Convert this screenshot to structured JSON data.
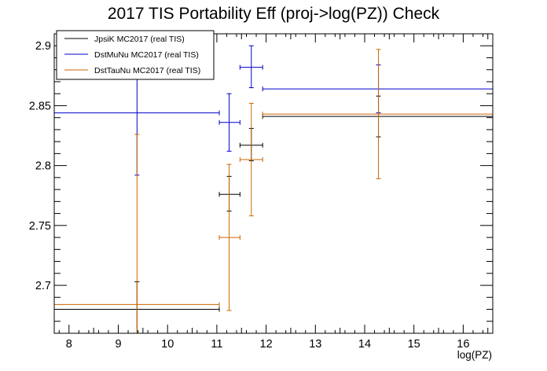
{
  "chart_data": {
    "type": "scatter",
    "title": "2017 TIS Portability Eff (proj->log(PZ)) Check",
    "xlabel": "log(PZ)",
    "ylabel": "",
    "xlim": [
      7.7,
      16.6
    ],
    "ylim": [
      2.66,
      2.91
    ],
    "x_ticks": [
      8,
      9,
      10,
      11,
      12,
      13,
      14,
      15,
      16
    ],
    "y_ticks": [
      2.7,
      2.75,
      2.8,
      2.85,
      2.9
    ],
    "x_tick_labels": [
      "8",
      "9",
      "10",
      "11",
      "12",
      "13",
      "14",
      "15",
      "16"
    ],
    "y_tick_labels": [
      "2.7",
      "2.75",
      "2.8",
      "2.85",
      "2.9"
    ],
    "grid": false,
    "legend_position": "top-left",
    "series": [
      {
        "name": "JpsiK MC2017 (real TIS)",
        "color": "#000000",
        "points": [
          {
            "x": 9.38,
            "xlo": 7.7,
            "xhi": 11.05,
            "y": 2.68,
            "ylo": 2.657,
            "yhi": 2.703
          },
          {
            "x": 11.25,
            "xlo": 11.05,
            "xhi": 11.47,
            "y": 2.776,
            "ylo": 2.762,
            "yhi": 2.791
          },
          {
            "x": 11.7,
            "xlo": 11.47,
            "xhi": 11.93,
            "y": 2.817,
            "ylo": 2.804,
            "yhi": 2.831
          },
          {
            "x": 14.28,
            "xlo": 11.93,
            "xhi": 16.6,
            "y": 2.841,
            "ylo": 2.824,
            "yhi": 2.858
          }
        ]
      },
      {
        "name": "DstMuNu MC2017 (real TIS)",
        "color": "#0000cc",
        "points": [
          {
            "x": 9.38,
            "xlo": 7.7,
            "xhi": 11.05,
            "y": 2.844,
            "ylo": 2.792,
            "yhi": 2.896
          },
          {
            "x": 11.25,
            "xlo": 11.05,
            "xhi": 11.47,
            "y": 2.836,
            "ylo": 2.812,
            "yhi": 2.86
          },
          {
            "x": 11.7,
            "xlo": 11.47,
            "xhi": 11.93,
            "y": 2.882,
            "ylo": 2.865,
            "yhi": 2.9
          },
          {
            "x": 14.28,
            "xlo": 11.93,
            "xhi": 16.6,
            "y": 2.864,
            "ylo": 2.844,
            "yhi": 2.884
          }
        ]
      },
      {
        "name": "DstTauNu MC2017 (real TIS)",
        "color": "#cc6600",
        "points": [
          {
            "x": 9.38,
            "xlo": 7.7,
            "xhi": 11.05,
            "y": 2.684,
            "ylo": 2.55,
            "yhi": 2.826
          },
          {
            "x": 11.25,
            "xlo": 11.05,
            "xhi": 11.47,
            "y": 2.74,
            "ylo": 2.679,
            "yhi": 2.801
          },
          {
            "x": 11.7,
            "xlo": 11.47,
            "xhi": 11.93,
            "y": 2.805,
            "ylo": 2.758,
            "yhi": 2.852
          },
          {
            "x": 14.28,
            "xlo": 11.93,
            "xhi": 16.6,
            "y": 2.843,
            "ylo": 2.789,
            "yhi": 2.897
          }
        ]
      }
    ]
  }
}
